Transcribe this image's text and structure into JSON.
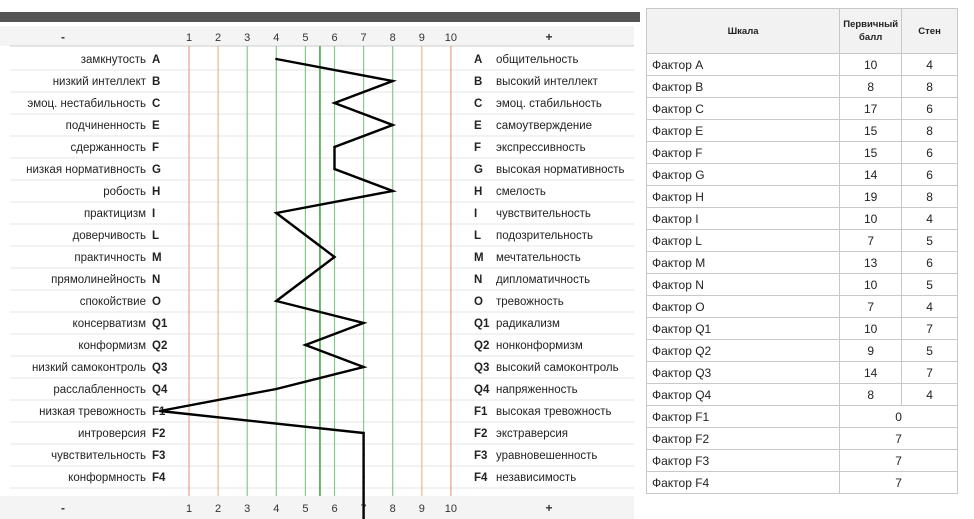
{
  "chart_data": {
    "type": "line",
    "title": "",
    "axis": {
      "min": 1,
      "max": 10,
      "ticks": [
        "1",
        "2",
        "3",
        "4",
        "5",
        "6",
        "7",
        "8",
        "9",
        "10"
      ],
      "left_sign": "-",
      "right_sign": "+",
      "line_colors": {
        "1": "#e8a080",
        "2": "#f0b890",
        "3": "#88c888",
        "4": "#88c888",
        "5": "#88c888",
        "5.5": "#44aa44",
        "6": "#88c888",
        "7": "#88c888",
        "8": "#88c888",
        "9": "#f0b890",
        "10": "#e8a080"
      },
      "extra_lines": [
        5.5
      ]
    },
    "line_color": "#000000",
    "factors": [
      {
        "code": "A",
        "left": "замкнутость",
        "right": "общительность",
        "value": 4
      },
      {
        "code": "B",
        "left": "низкий интеллект",
        "right": "высокий интеллект",
        "value": 8
      },
      {
        "code": "C",
        "left": "эмоц. нестабильность",
        "right": "эмоц. стабильность",
        "value": 6
      },
      {
        "code": "E",
        "left": "подчиненность",
        "right": "самоутверждение",
        "value": 8
      },
      {
        "code": "F",
        "left": "сдержанность",
        "right": "экспрессивность",
        "value": 6
      },
      {
        "code": "G",
        "left": "низкая нормативность",
        "right": "высокая нормативность",
        "value": 6
      },
      {
        "code": "H",
        "left": "робость",
        "right": "смелость",
        "value": 8
      },
      {
        "code": "I",
        "left": "практицизм",
        "right": "чувствительность",
        "value": 4
      },
      {
        "code": "L",
        "left": "доверчивость",
        "right": "подозрительность",
        "value": 5
      },
      {
        "code": "M",
        "left": "практичность",
        "right": "мечтательность",
        "value": 6
      },
      {
        "code": "N",
        "left": "прямолинейность",
        "right": "дипломатичность",
        "value": 5
      },
      {
        "code": "O",
        "left": "спокойствие",
        "right": "тревожность",
        "value": 4
      },
      {
        "code": "Q1",
        "left": "консерватизм",
        "right": "радикализм",
        "value": 7
      },
      {
        "code": "Q2",
        "left": "конформизм",
        "right": "нонконформизм",
        "value": 5
      },
      {
        "code": "Q3",
        "left": "низкий самоконтроль",
        "right": "высокий самоконтроль",
        "value": 7
      },
      {
        "code": "Q4",
        "left": "расслабленность",
        "right": "напряженность",
        "value": 4
      },
      {
        "code": "F1",
        "left": "низкая тревожность",
        "right": "высокая тревожность",
        "value": 0
      },
      {
        "code": "F2",
        "left": "интроверсия",
        "right": "экстраверсия",
        "value": 7
      },
      {
        "code": "F3",
        "left": "чувствительность",
        "right": "уравновешенность",
        "value": 7
      },
      {
        "code": "F4",
        "left": "конформность",
        "right": "независимость",
        "value": 7
      }
    ]
  },
  "table": {
    "headers": {
      "scale": "Шкала",
      "primary": "Первичный балл",
      "sten": "Стен"
    },
    "rows": [
      {
        "name": "Фактор A",
        "primary": "10",
        "sten": "4"
      },
      {
        "name": "Фактор B",
        "primary": "8",
        "sten": "8"
      },
      {
        "name": "Фактор C",
        "primary": "17",
        "sten": "6"
      },
      {
        "name": "Фактор E",
        "primary": "15",
        "sten": "8"
      },
      {
        "name": "Фактор F",
        "primary": "15",
        "sten": "6"
      },
      {
        "name": "Фактор G",
        "primary": "14",
        "sten": "6"
      },
      {
        "name": "Фактор H",
        "primary": "19",
        "sten": "8"
      },
      {
        "name": "Фактор I",
        "primary": "10",
        "sten": "4"
      },
      {
        "name": "Фактор L",
        "primary": "7",
        "sten": "5"
      },
      {
        "name": "Фактор M",
        "primary": "13",
        "sten": "6"
      },
      {
        "name": "Фактор N",
        "primary": "10",
        "sten": "5"
      },
      {
        "name": "Фактор O",
        "primary": "7",
        "sten": "4"
      },
      {
        "name": "Фактор Q1",
        "primary": "10",
        "sten": "7"
      },
      {
        "name": "Фактор Q2",
        "primary": "9",
        "sten": "5"
      },
      {
        "name": "Фактор Q3",
        "primary": "14",
        "sten": "7"
      },
      {
        "name": "Фактор Q4",
        "primary": "8",
        "sten": "4"
      }
    ],
    "merged_rows": [
      {
        "name": "Фактор F1",
        "value": "0"
      },
      {
        "name": "Фактор F2",
        "value": "7"
      },
      {
        "name": "Фактор F3",
        "value": "7"
      },
      {
        "name": "Фактор F4",
        "value": "7"
      }
    ]
  }
}
